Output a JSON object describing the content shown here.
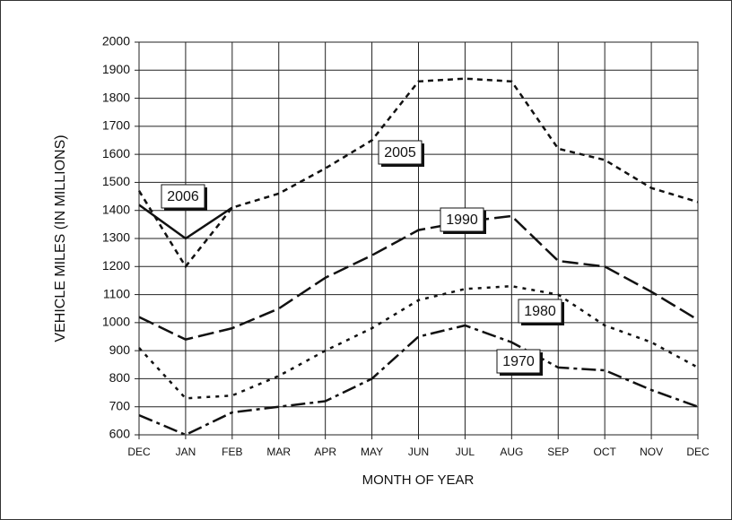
{
  "chart_data": {
    "type": "line",
    "y_label": "VEHICLE MILES (IN MILLIONS)",
    "x_label": "MONTH OF YEAR",
    "categories": [
      "DEC",
      "JAN",
      "FEB",
      "MAR",
      "APR",
      "MAY",
      "JUN",
      "JUL",
      "AUG",
      "SEP",
      "OCT",
      "NOV",
      "DEC"
    ],
    "ylim": [
      600,
      2000
    ],
    "yticks": [
      600,
      700,
      800,
      900,
      1000,
      1100,
      1200,
      1300,
      1400,
      1500,
      1600,
      1700,
      1800,
      1900,
      2000
    ],
    "grid": true,
    "series": [
      {
        "name": "2006",
        "color": "#111111",
        "values": [
          1420,
          1300,
          1410,
          null,
          null,
          null,
          null,
          null,
          null,
          null,
          null,
          null,
          null
        ]
      },
      {
        "name": "2005",
        "color": "#111111",
        "values": [
          1470,
          1200,
          1410,
          1460,
          1550,
          1650,
          1860,
          1870,
          1860,
          1620,
          1580,
          1480,
          1430
        ]
      },
      {
        "name": "1990",
        "color": "#111111",
        "values": [
          1020,
          940,
          980,
          1050,
          1160,
          1240,
          1330,
          1360,
          1380,
          1220,
          1200,
          1110,
          1010
        ]
      },
      {
        "name": "1980",
        "color": "#111111",
        "values": [
          910,
          730,
          740,
          810,
          900,
          980,
          1080,
          1120,
          1130,
          1100,
          990,
          930,
          840
        ]
      },
      {
        "name": "1970",
        "color": "#111111",
        "values": [
          670,
          600,
          680,
          700,
          720,
          800,
          950,
          990,
          930,
          840,
          830,
          760,
          700
        ]
      }
    ]
  }
}
